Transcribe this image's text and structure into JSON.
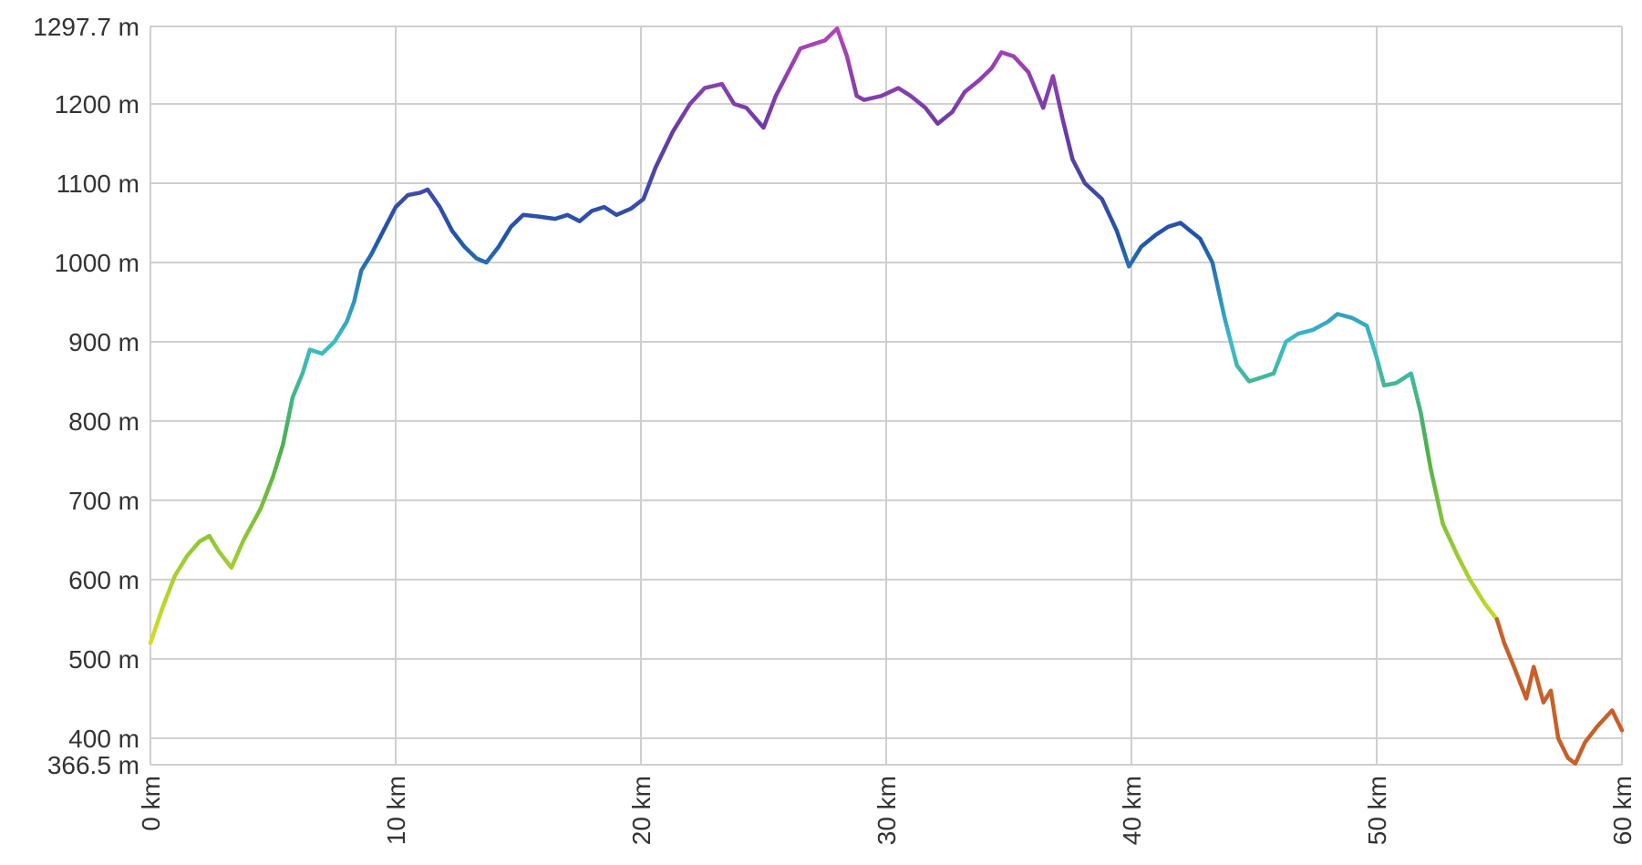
{
  "chart_data": {
    "type": "line",
    "x": [
      0,
      0.5,
      1,
      1.5,
      2,
      2.4,
      2.8,
      3.3,
      3.8,
      4.5,
      5,
      5.4,
      5.8,
      6.2,
      6.5,
      7,
      7.5,
      8,
      8.3,
      8.6,
      9,
      9.5,
      10,
      10.5,
      11,
      11.3,
      11.8,
      12.3,
      12.8,
      13.3,
      13.7,
      14.2,
      14.7,
      15.2,
      15.8,
      16.5,
      17,
      17.5,
      18,
      18.5,
      19,
      19.6,
      20.1,
      20.6,
      21.3,
      22,
      22.6,
      23.3,
      23.8,
      24.3,
      25,
      25.5,
      26,
      26.5,
      27,
      27.5,
      28,
      28.4,
      28.8,
      29.1,
      29.8,
      30.5,
      31,
      31.6,
      32.1,
      32.7,
      33.2,
      33.8,
      34.3,
      34.7,
      35.2,
      35.8,
      36.4,
      36.8,
      37.2,
      37.6,
      38.1,
      38.8,
      39.4,
      39.9,
      40.4,
      41,
      41.5,
      42,
      42.8,
      43.3,
      43.8,
      44.3,
      44.8,
      45.3,
      45.8,
      46.3,
      46.8,
      47.4,
      48,
      48.4,
      49,
      49.6,
      50,
      50.3,
      50.8,
      51.4,
      51.8,
      52.2,
      52.7,
      53.3,
      53.8,
      54.4,
      54.9,
      55.2,
      55.6,
      56.1,
      56.4,
      56.8,
      57.1,
      57.4,
      57.8,
      58.1,
      58.5,
      59,
      59.6,
      60
    ],
    "series": [
      {
        "colors": [
          "#f0e81a",
          "#e0e020",
          "#9acb34",
          "#4cb04a",
          "#3bbcc8",
          "#1e55a8",
          "#6a3aa6",
          "#b346b6"
        ],
        "values": [
          520,
          565,
          605,
          630,
          648,
          655,
          635,
          615,
          650,
          690,
          730,
          770,
          830,
          860,
          890,
          885,
          900,
          925,
          950,
          990,
          1010,
          1040,
          1070,
          1085,
          1088,
          1092,
          1070,
          1040,
          1020,
          1005,
          1000,
          1020,
          1045,
          1060,
          1058,
          1055,
          1060,
          1052,
          1065,
          1070,
          1060,
          1068,
          1080,
          1120,
          1165,
          1200,
          1220,
          1225,
          1200,
          1195,
          1170,
          1210,
          1240,
          1270,
          1275,
          1280,
          1295,
          1260,
          1210,
          1205,
          1210,
          1220,
          1210,
          1195,
          1175,
          1190,
          1215,
          1230,
          1245,
          1265,
          1260,
          1240,
          1195,
          1235,
          1180,
          1130,
          1100,
          1080,
          1040,
          995,
          1020,
          1035,
          1045,
          1050,
          1030,
          1000,
          930,
          870,
          850,
          855,
          860,
          900,
          910,
          915,
          925,
          935,
          930,
          920,
          880,
          845,
          848,
          860,
          810,
          740,
          670,
          630,
          600,
          570,
          550,
          null,
          null,
          null,
          null,
          null,
          null,
          null,
          null,
          null,
          null,
          null,
          null,
          null
        ]
      },
      {
        "color": "#c8602a",
        "values": [
          null,
          null,
          null,
          null,
          null,
          null,
          null,
          null,
          null,
          null,
          null,
          null,
          null,
          null,
          null,
          null,
          null,
          null,
          null,
          null,
          null,
          null,
          null,
          null,
          null,
          null,
          null,
          null,
          null,
          null,
          null,
          null,
          null,
          null,
          null,
          null,
          null,
          null,
          null,
          null,
          null,
          null,
          null,
          null,
          null,
          null,
          null,
          null,
          null,
          null,
          null,
          null,
          null,
          null,
          null,
          null,
          null,
          null,
          null,
          null,
          null,
          null,
          null,
          null,
          null,
          null,
          null,
          null,
          null,
          null,
          null,
          null,
          null,
          null,
          null,
          null,
          null,
          null,
          null,
          null,
          null,
          null,
          null,
          null,
          null,
          null,
          null,
          null,
          null,
          null,
          null,
          null,
          null,
          null,
          null,
          null,
          null,
          null,
          null,
          null,
          null,
          null,
          null,
          null,
          null,
          null,
          null,
          null,
          550,
          520,
          490,
          450,
          490,
          445,
          460,
          400,
          375,
          368,
          395,
          415,
          435,
          410
        ]
      }
    ],
    "xlim": [
      0,
      60
    ],
    "xticks": [
      {
        "value": 0,
        "label": "0 km"
      },
      {
        "value": 10,
        "label": "10 km"
      },
      {
        "value": 20,
        "label": "20 km"
      },
      {
        "value": 30,
        "label": "30 km"
      },
      {
        "value": 40,
        "label": "40 km"
      },
      {
        "value": 50,
        "label": "50 km"
      },
      {
        "value": 60,
        "label": "60 km"
      }
    ],
    "ylim": [
      366.5,
      1297.7
    ],
    "yticks": [
      {
        "value": 366.5,
        "label": "366.5 m"
      },
      {
        "value": 400,
        "label": "400 m"
      },
      {
        "value": 500,
        "label": "500 m"
      },
      {
        "value": 600,
        "label": "600 m"
      },
      {
        "value": 700,
        "label": "700 m"
      },
      {
        "value": 800,
        "label": "800 m"
      },
      {
        "value": 900,
        "label": "900 m"
      },
      {
        "value": 1000,
        "label": "1000 m"
      },
      {
        "value": 1100,
        "label": "1100 m"
      },
      {
        "value": 1200,
        "label": "1200 m"
      },
      {
        "value": 1297.7,
        "label": "1297.7 m"
      }
    ],
    "grid": true
  }
}
